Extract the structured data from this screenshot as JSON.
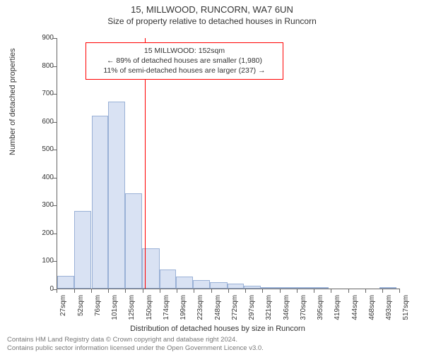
{
  "title": "15, MILLWOOD, RUNCORN, WA7 6UN",
  "subtitle": "Size of property relative to detached houses in Runcorn",
  "chart": {
    "type": "histogram",
    "ylabel": "Number of detached properties",
    "xlabel": "Distribution of detached houses by size in Runcorn",
    "ylim": [
      0,
      900
    ],
    "ytick_step": 100,
    "xmin": 27,
    "xmax": 518,
    "xtick_start": 27,
    "xtick_step_sqm": 24.5,
    "xtick_count": 21,
    "xtick_unit": "sqm",
    "bar_fill": "#d9e2f3",
    "bar_stroke": "#9ab1d6",
    "background_color": "#ffffff",
    "axis_color": "#666666",
    "vline_color": "#ff0000",
    "vline_x": 152,
    "bars": [
      {
        "x0": 27,
        "x1": 51,
        "y": 45
      },
      {
        "x0": 51,
        "x1": 76,
        "y": 278
      },
      {
        "x0": 76,
        "x1": 100,
        "y": 620
      },
      {
        "x0": 100,
        "x1": 124,
        "y": 670
      },
      {
        "x0": 124,
        "x1": 148,
        "y": 342
      },
      {
        "x0": 148,
        "x1": 173,
        "y": 145
      },
      {
        "x0": 173,
        "x1": 197,
        "y": 68
      },
      {
        "x0": 197,
        "x1": 221,
        "y": 42
      },
      {
        "x0": 221,
        "x1": 245,
        "y": 30
      },
      {
        "x0": 245,
        "x1": 270,
        "y": 22
      },
      {
        "x0": 270,
        "x1": 294,
        "y": 18
      },
      {
        "x0": 294,
        "x1": 318,
        "y": 10
      },
      {
        "x0": 318,
        "x1": 343,
        "y": 4
      },
      {
        "x0": 343,
        "x1": 367,
        "y": 3
      },
      {
        "x0": 367,
        "x1": 391,
        "y": 2
      },
      {
        "x0": 391,
        "x1": 415,
        "y": 6
      },
      {
        "x0": 415,
        "x1": 439,
        "y": 0
      },
      {
        "x0": 439,
        "x1": 464,
        "y": 0
      },
      {
        "x0": 464,
        "x1": 488,
        "y": 0
      },
      {
        "x0": 488,
        "x1": 512,
        "y": 2
      }
    ],
    "annotation": {
      "line1": "15 MILLWOOD: 152sqm",
      "line2": "← 89% of detached houses are smaller (1,980)",
      "line3": "11% of semi-detached houses are larger (237) →"
    }
  },
  "footer": {
    "line1": "Contains HM Land Registry data © Crown copyright and database right 2024.",
    "line2": "Contains public sector information licensed under the Open Government Licence v3.0."
  }
}
